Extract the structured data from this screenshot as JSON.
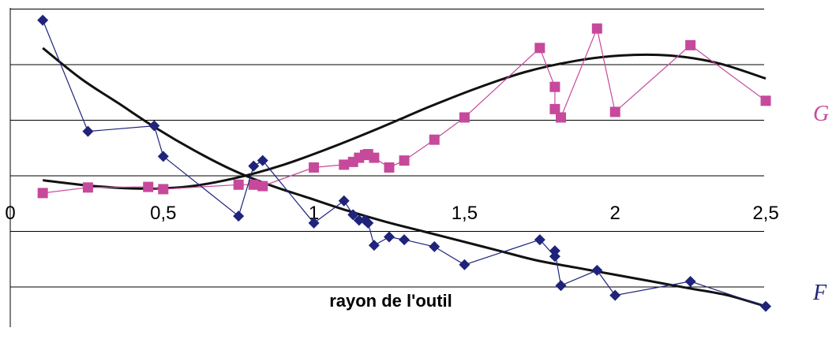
{
  "chart_data": {
    "type": "scatter",
    "title": "",
    "xlabel": "rayon de l'outil",
    "ylabel": "",
    "xlim": [
      0,
      2.5
    ],
    "xticks": [
      "0",
      "0,5",
      "1",
      "1,5",
      "2",
      "2,5"
    ],
    "grid": true,
    "series": [
      {
        "name": "G",
        "color": "#c6499b",
        "marker": "square",
        "x": [
          0.1,
          0.25,
          0.45,
          0.5,
          0.75,
          0.8,
          0.83,
          1.0,
          1.1,
          1.13,
          1.15,
          1.17,
          1.18,
          1.2,
          1.25,
          1.3,
          1.4,
          1.5,
          1.75,
          1.8,
          1.8,
          1.82,
          1.94,
          2.0,
          2.25,
          2.5
        ],
        "y": [
          -0.62,
          -0.42,
          -0.4,
          -0.48,
          -0.32,
          -0.32,
          -0.37,
          0.3,
          0.4,
          0.5,
          0.65,
          0.75,
          0.78,
          0.65,
          0.3,
          0.55,
          1.3,
          2.1,
          4.6,
          3.2,
          2.4,
          2.1,
          5.3,
          2.3,
          4.7,
          2.7
        ],
        "trend": [
          -0.16,
          -0.36,
          -0.46,
          -0.39,
          -0.08,
          0.4,
          1.03,
          1.73,
          2.47,
          3.15,
          3.73,
          4.12,
          4.33,
          4.33,
          4.06,
          3.5
        ]
      },
      {
        "name": "F",
        "color": "#1f237a",
        "marker": "diamond",
        "x": [
          0.1,
          0.25,
          0.47,
          0.5,
          0.75,
          0.8,
          0.83,
          1.0,
          1.1,
          1.13,
          1.15,
          1.17,
          1.18,
          1.2,
          1.25,
          1.3,
          1.4,
          1.5,
          1.75,
          1.8,
          1.8,
          1.82,
          1.94,
          2.0,
          2.25,
          2.5
        ],
        "y": [
          5.6,
          1.6,
          1.8,
          0.7,
          -1.45,
          0.35,
          0.55,
          -1.7,
          -0.9,
          -1.4,
          -1.6,
          -1.6,
          -1.7,
          -2.5,
          -2.2,
          -2.3,
          -2.55,
          -3.2,
          -2.3,
          -2.9,
          -2.7,
          -3.95,
          -3.4,
          -4.3,
          -3.8,
          -4.7
        ],
        "trend": [
          4.6,
          3.5,
          2.6,
          1.7,
          0.9,
          0.2,
          -0.35,
          -0.8,
          -1.25,
          -1.65,
          -2.0,
          -2.35,
          -2.7,
          -3.05,
          -3.3,
          -3.55,
          -3.8,
          -4.05,
          -4.3,
          -4.7
        ]
      }
    ]
  }
}
